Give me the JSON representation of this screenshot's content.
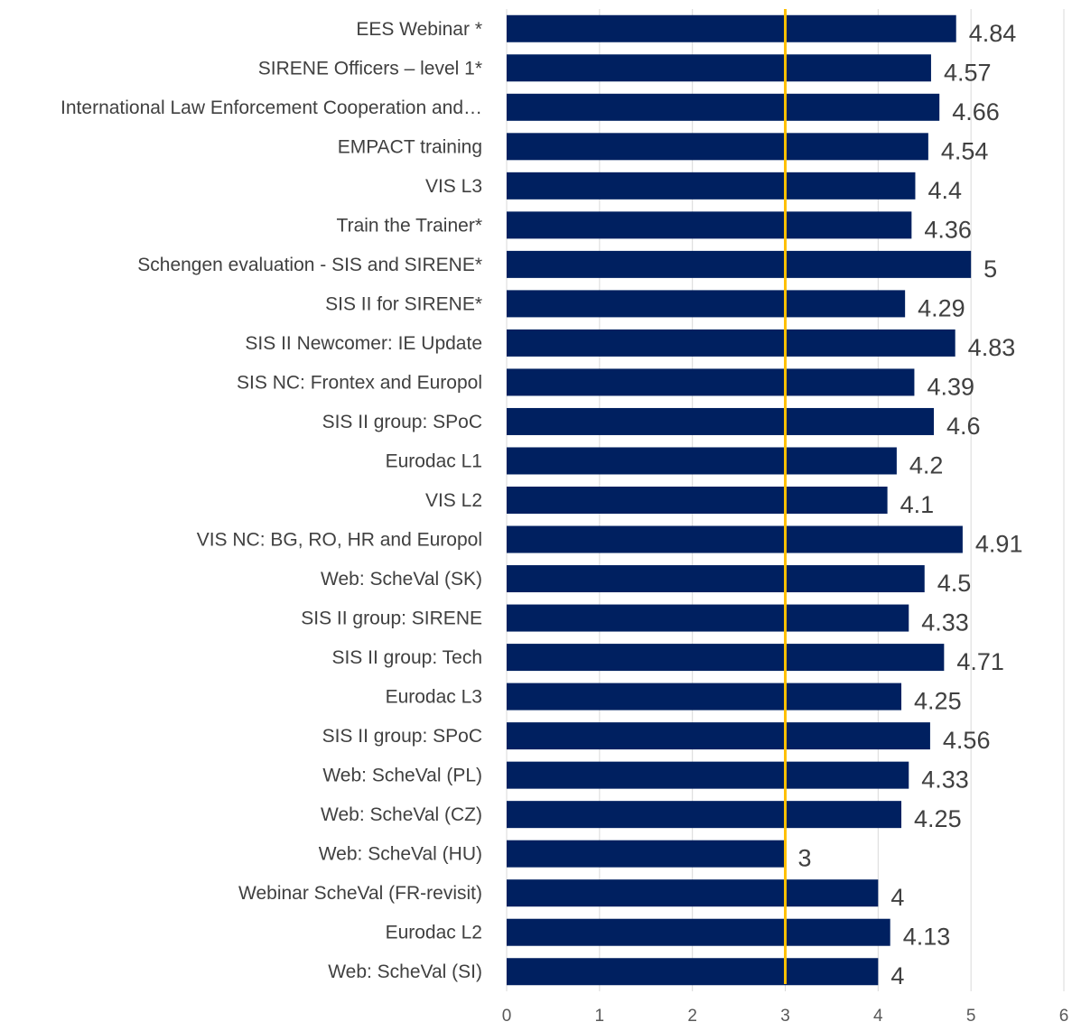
{
  "chart_data": {
    "type": "bar",
    "orientation": "horizontal",
    "title": "",
    "xlabel": "",
    "ylabel": "",
    "xlim": [
      0,
      6
    ],
    "x_ticks": [
      "0",
      "1",
      "2",
      "3",
      "4",
      "5",
      "6"
    ],
    "grid": "vertical gridlines on",
    "legend": "none",
    "bar_color": "#002060",
    "reference_line": {
      "value": 3,
      "color": "#FFC000"
    },
    "categories": [
      "EES Webinar *",
      "SIRENE Officers – level 1*",
      "International Law Enforcement Cooperation and…",
      "EMPACT training",
      "VIS L3",
      "Train the Trainer*",
      "Schengen evaluation - SIS and SIRENE*",
      "SIS II for SIRENE*",
      "SIS II Newcomer: IE Update",
      "SIS NC: Frontex and Europol",
      "SIS II group: SPoC",
      "Eurodac L1",
      "VIS L2",
      "VIS NC: BG, RO, HR and Europol",
      "Web: ScheVal (SK)",
      "SIS II group: SIRENE",
      "SIS II group: Tech",
      "Eurodac L3",
      "SIS II group: SPoC",
      "Web: ScheVal (PL)",
      "Web: ScheVal (CZ)",
      "Web: ScheVal (HU)",
      "Webinar ScheVal (FR-revisit)",
      "Eurodac L2",
      "Web: ScheVal (SI)"
    ],
    "values": [
      4.84,
      4.57,
      4.66,
      4.54,
      4.4,
      4.36,
      5,
      4.29,
      4.83,
      4.39,
      4.6,
      4.2,
      4.1,
      4.91,
      4.5,
      4.33,
      4.71,
      4.25,
      4.56,
      4.33,
      4.25,
      3,
      4,
      4.13,
      4
    ],
    "value_labels": [
      "4.84",
      "4.57",
      "4.66",
      "4.54",
      "4.4",
      "4.36",
      "5",
      "4.29",
      "4.83",
      "4.39",
      "4.6",
      "4.2",
      "4.1",
      "4.91",
      "4.5",
      "4.33",
      "4.71",
      "4.25",
      "4.56",
      "4.33",
      "4.25",
      "3",
      "4",
      "4.13",
      "4"
    ]
  }
}
